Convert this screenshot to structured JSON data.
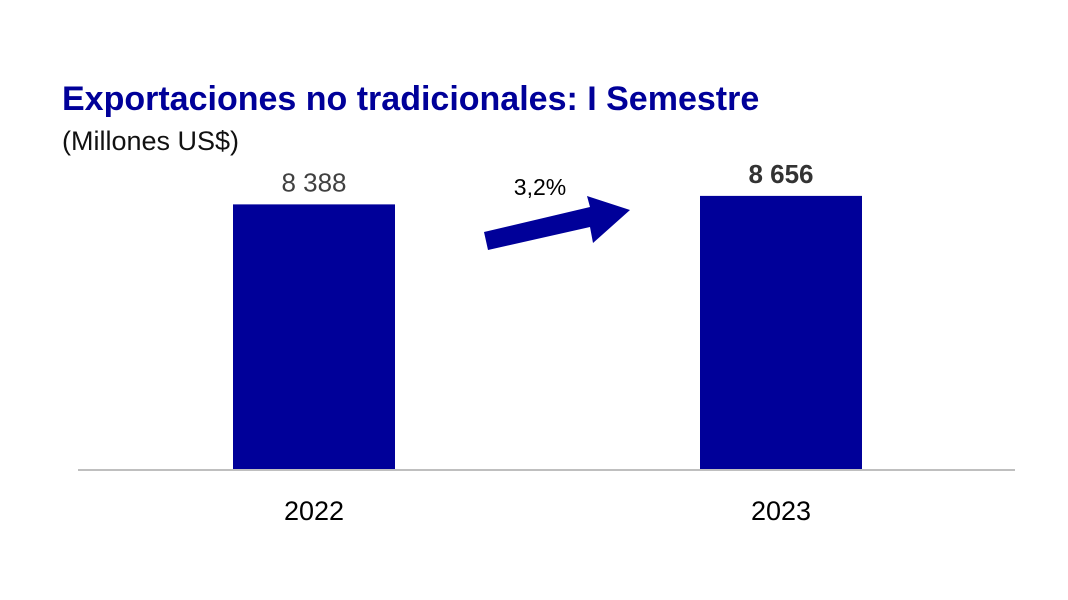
{
  "chart_data": {
    "type": "bar",
    "title": "Exportaciones no tradicionales: I Semestre",
    "subtitle": "(Millones US$)",
    "categories": [
      "2022",
      "2023"
    ],
    "values": [
      8388,
      8656
    ],
    "value_labels": [
      "8 388",
      "8 656"
    ],
    "value_label_bold": [
      false,
      true
    ],
    "growth_label": "3,2%",
    "bar_color": "#000099",
    "arrow_color": "#000099",
    "baseline_color": "#bfbfbf",
    "ylim": [
      0,
      9000
    ],
    "grid": false,
    "legend": "none"
  }
}
